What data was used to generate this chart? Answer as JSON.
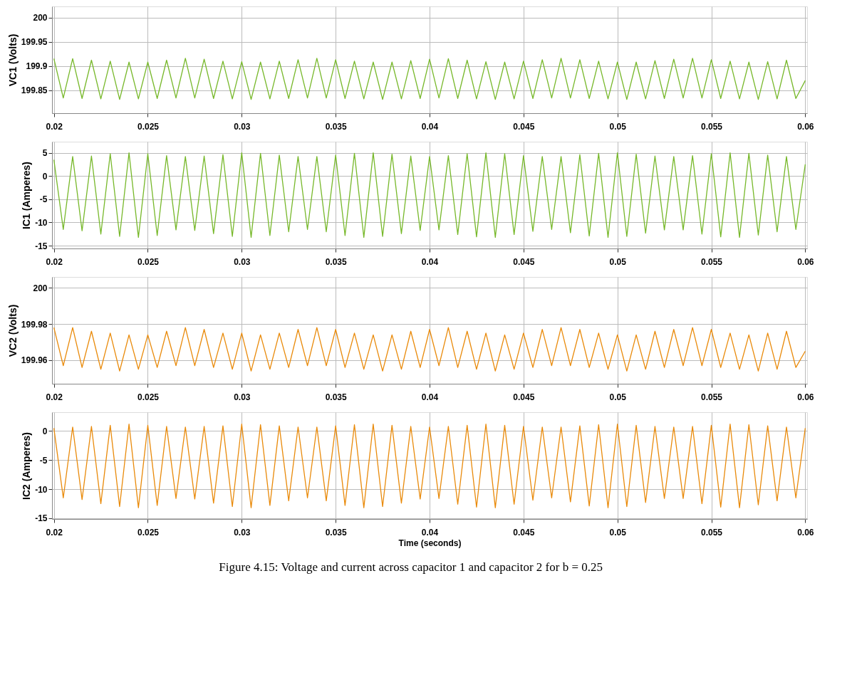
{
  "chart_data": [
    {
      "type": "line",
      "ylabel": "VC1 (Volts)",
      "grid": true,
      "xlim": [
        0.0199,
        0.0601
      ],
      "xticks": [
        0.02,
        0.025,
        0.03,
        0.035,
        0.04,
        0.045,
        0.05,
        0.055,
        0.06
      ],
      "ylim": [
        199.8025,
        200.023
      ],
      "yticks": [
        199.85,
        199.9,
        199.95,
        200
      ],
      "x": [
        0.02,
        0.0205,
        0.021,
        0.0215,
        0.022,
        0.0225,
        0.023,
        0.0235,
        0.024,
        0.0245,
        0.025,
        0.0255,
        0.026,
        0.0265,
        0.027,
        0.0275,
        0.028,
        0.0285,
        0.029,
        0.0295,
        0.03,
        0.0305,
        0.031,
        0.0315,
        0.032,
        0.0325,
        0.033,
        0.0335,
        0.034,
        0.0345,
        0.035,
        0.0355,
        0.036,
        0.0365,
        0.037,
        0.0375,
        0.038,
        0.0385,
        0.039,
        0.0395,
        0.04,
        0.0405,
        0.041,
        0.0415,
        0.042,
        0.0425,
        0.043,
        0.0435,
        0.044,
        0.0445,
        0.045,
        0.0455,
        0.046,
        0.0465,
        0.047,
        0.0475,
        0.048,
        0.0485,
        0.049,
        0.0495,
        0.05,
        0.0505,
        0.051,
        0.0515,
        0.052,
        0.0525,
        0.053,
        0.0535,
        0.054,
        0.0545,
        0.055,
        0.0555,
        0.056,
        0.0565,
        0.057,
        0.0575,
        0.058,
        0.0585,
        0.059,
        0.0595,
        0.06
      ],
      "series": [
        {
          "color": "#77b82a",
          "values": [
            199.915,
            199.834,
            199.915,
            199.833,
            199.912,
            199.832,
            199.91,
            199.831,
            199.908,
            199.832,
            199.908,
            199.833,
            199.912,
            199.834,
            199.916,
            199.834,
            199.914,
            199.833,
            199.91,
            199.832,
            199.909,
            199.831,
            199.908,
            199.832,
            199.91,
            199.833,
            199.913,
            199.834,
            199.916,
            199.834,
            199.913,
            199.833,
            199.91,
            199.832,
            199.908,
            199.831,
            199.908,
            199.832,
            199.911,
            199.833,
            199.914,
            199.834,
            199.915,
            199.833,
            199.912,
            199.832,
            199.909,
            199.831,
            199.908,
            199.832,
            199.91,
            199.833,
            199.913,
            199.834,
            199.916,
            199.834,
            199.913,
            199.833,
            199.91,
            199.832,
            199.908,
            199.831,
            199.908,
            199.832,
            199.911,
            199.833,
            199.914,
            199.834,
            199.916,
            199.834,
            199.913,
            199.833,
            199.91,
            199.832,
            199.908,
            199.831,
            199.909,
            199.832,
            199.912,
            199.833,
            199.87
          ]
        }
      ]
    },
    {
      "type": "line",
      "ylabel": "IC1 (Amperes)",
      "grid": true,
      "xlim": [
        0.0199,
        0.0601
      ],
      "xticks": [
        0.02,
        0.025,
        0.03,
        0.035,
        0.04,
        0.045,
        0.05,
        0.055,
        0.06
      ],
      "ylim": [
        -15.6,
        7.4
      ],
      "yticks": [
        -15,
        -10,
        -5,
        0,
        5
      ],
      "x": [
        0.02,
        0.0205,
        0.021,
        0.0215,
        0.022,
        0.0225,
        0.023,
        0.0235,
        0.024,
        0.0245,
        0.025,
        0.0255,
        0.026,
        0.0265,
        0.027,
        0.0275,
        0.028,
        0.0285,
        0.029,
        0.0295,
        0.03,
        0.0305,
        0.031,
        0.0315,
        0.032,
        0.0325,
        0.033,
        0.0335,
        0.034,
        0.0345,
        0.035,
        0.0355,
        0.036,
        0.0365,
        0.037,
        0.0375,
        0.038,
        0.0385,
        0.039,
        0.0395,
        0.04,
        0.0405,
        0.041,
        0.0415,
        0.042,
        0.0425,
        0.043,
        0.0435,
        0.044,
        0.0445,
        0.045,
        0.0455,
        0.046,
        0.0465,
        0.047,
        0.0475,
        0.048,
        0.0485,
        0.049,
        0.0495,
        0.05,
        0.0505,
        0.051,
        0.0515,
        0.052,
        0.0525,
        0.053,
        0.0535,
        0.054,
        0.0545,
        0.055,
        0.0555,
        0.056,
        0.0565,
        0.057,
        0.0575,
        0.058,
        0.0585,
        0.059,
        0.0595,
        0.06
      ],
      "series": [
        {
          "color": "#77b82a",
          "values": [
            3.5,
            -11.5,
            4.2,
            -11.8,
            4.3,
            -12.5,
            4.8,
            -13,
            5,
            -13.2,
            4.8,
            -12.8,
            4.4,
            -11.6,
            4.2,
            -11.7,
            4.3,
            -12.4,
            4.6,
            -13,
            5,
            -13.2,
            4.9,
            -12.8,
            4.5,
            -12,
            4.2,
            -11.5,
            4.2,
            -12,
            4.5,
            -12.8,
            4.9,
            -13.2,
            5,
            -13,
            4.7,
            -12.4,
            4.3,
            -11.7,
            4.2,
            -11.6,
            4.4,
            -12.6,
            4.8,
            -13.1,
            5,
            -13.2,
            4.8,
            -12.6,
            4.4,
            -11.9,
            4.2,
            -11.5,
            4.2,
            -12.2,
            4.6,
            -12.9,
            4.9,
            -13.2,
            5,
            -13,
            4.7,
            -12.3,
            4.3,
            -11.6,
            4.2,
            -11.6,
            4.4,
            -12.5,
            4.8,
            -13.1,
            5,
            -13.2,
            4.9,
            -12.7,
            4.5,
            -12,
            4.2,
            -11.5,
            2.5
          ]
        }
      ]
    },
    {
      "type": "line",
      "ylabel": "VC2 (Volts)",
      "grid": true,
      "xlim": [
        0.0199,
        0.0601
      ],
      "xticks": [
        0.02,
        0.025,
        0.03,
        0.035,
        0.04,
        0.045,
        0.05,
        0.055,
        0.06
      ],
      "ylim": [
        199.947,
        200.006
      ],
      "yticks": [
        199.96,
        199.98,
        200
      ],
      "x": [
        0.02,
        0.0205,
        0.021,
        0.0215,
        0.022,
        0.0225,
        0.023,
        0.0235,
        0.024,
        0.0245,
        0.025,
        0.0255,
        0.026,
        0.0265,
        0.027,
        0.0275,
        0.028,
        0.0285,
        0.029,
        0.0295,
        0.03,
        0.0305,
        0.031,
        0.0315,
        0.032,
        0.0325,
        0.033,
        0.0335,
        0.034,
        0.0345,
        0.035,
        0.0355,
        0.036,
        0.0365,
        0.037,
        0.0375,
        0.038,
        0.0385,
        0.039,
        0.0395,
        0.04,
        0.0405,
        0.041,
        0.0415,
        0.042,
        0.0425,
        0.043,
        0.0435,
        0.044,
        0.0445,
        0.045,
        0.0455,
        0.046,
        0.0465,
        0.047,
        0.0475,
        0.048,
        0.0485,
        0.049,
        0.0495,
        0.05,
        0.0505,
        0.051,
        0.0515,
        0.052,
        0.0525,
        0.053,
        0.0535,
        0.054,
        0.0545,
        0.055,
        0.0555,
        0.056,
        0.0565,
        0.057,
        0.0575,
        0.058,
        0.0585,
        0.059,
        0.0595,
        0.06
      ],
      "series": [
        {
          "color": "#e98a0a",
          "values": [
            199.978,
            199.957,
            199.978,
            199.956,
            199.976,
            199.955,
            199.975,
            199.954,
            199.974,
            199.955,
            199.974,
            199.956,
            199.976,
            199.957,
            199.978,
            199.957,
            199.977,
            199.956,
            199.975,
            199.955,
            199.975,
            199.954,
            199.974,
            199.955,
            199.975,
            199.956,
            199.977,
            199.957,
            199.978,
            199.957,
            199.977,
            199.956,
            199.975,
            199.955,
            199.974,
            199.954,
            199.974,
            199.955,
            199.976,
            199.956,
            199.977,
            199.957,
            199.978,
            199.956,
            199.976,
            199.955,
            199.975,
            199.954,
            199.974,
            199.955,
            199.975,
            199.956,
            199.977,
            199.957,
            199.978,
            199.957,
            199.977,
            199.956,
            199.975,
            199.955,
            199.974,
            199.954,
            199.974,
            199.955,
            199.976,
            199.956,
            199.977,
            199.957,
            199.978,
            199.957,
            199.977,
            199.956,
            199.975,
            199.955,
            199.974,
            199.954,
            199.975,
            199.955,
            199.976,
            199.956,
            199.965
          ]
        }
      ]
    },
    {
      "type": "line",
      "ylabel": "IC2 (Amperes)",
      "xlabel": "Time (seconds)",
      "grid": true,
      "xlim": [
        0.0199,
        0.0601
      ],
      "xticks": [
        0.02,
        0.025,
        0.03,
        0.035,
        0.04,
        0.045,
        0.05,
        0.055,
        0.06
      ],
      "ylim": [
        -15.15,
        3.25
      ],
      "yticks": [
        -15,
        -10,
        -5,
        0
      ],
      "annotations": [
        "Figure 4.15: Voltage and current across capacitor 1 and capacitor 2 for b = 0.25"
      ],
      "x": [
        0.02,
        0.0205,
        0.021,
        0.0215,
        0.022,
        0.0225,
        0.023,
        0.0235,
        0.024,
        0.0245,
        0.025,
        0.0255,
        0.026,
        0.0265,
        0.027,
        0.0275,
        0.028,
        0.0285,
        0.029,
        0.0295,
        0.03,
        0.0305,
        0.031,
        0.0315,
        0.032,
        0.0325,
        0.033,
        0.0335,
        0.034,
        0.0345,
        0.035,
        0.0355,
        0.036,
        0.0365,
        0.037,
        0.0375,
        0.038,
        0.0385,
        0.039,
        0.0395,
        0.04,
        0.0405,
        0.041,
        0.0415,
        0.042,
        0.0425,
        0.043,
        0.0435,
        0.044,
        0.0445,
        0.045,
        0.0455,
        0.046,
        0.0465,
        0.047,
        0.0475,
        0.048,
        0.0485,
        0.049,
        0.0495,
        0.05,
        0.0505,
        0.051,
        0.0515,
        0.052,
        0.0525,
        0.053,
        0.0535,
        0.054,
        0.0545,
        0.055,
        0.0555,
        0.056,
        0.0565,
        0.057,
        0.0575,
        0.058,
        0.0585,
        0.059,
        0.0595,
        0.06
      ],
      "series": [
        {
          "color": "#e98a0a",
          "values": [
            0.5,
            -11.5,
            0.7,
            -11.8,
            0.8,
            -12.5,
            1,
            -13,
            1.2,
            -13.2,
            1,
            -12.8,
            0.8,
            -11.6,
            0.7,
            -11.7,
            0.8,
            -12.4,
            0.9,
            -13,
            1.2,
            -13.2,
            1.1,
            -12.8,
            0.9,
            -12,
            0.7,
            -11.5,
            0.7,
            -12,
            0.9,
            -12.8,
            1.1,
            -13.2,
            1.2,
            -13,
            1,
            -12.4,
            0.8,
            -11.7,
            0.7,
            -11.6,
            0.8,
            -12.6,
            1,
            -13.1,
            1.2,
            -13.2,
            1,
            -12.6,
            0.8,
            -11.9,
            0.7,
            -11.5,
            0.7,
            -12.2,
            0.9,
            -12.9,
            1.1,
            -13.2,
            1.2,
            -13,
            1,
            -12.3,
            0.8,
            -11.6,
            0.7,
            -11.6,
            0.8,
            -12.5,
            1,
            -13.1,
            1.2,
            -13.2,
            1.1,
            -12.7,
            0.9,
            -12,
            0.7,
            -11.5,
            0.5
          ]
        }
      ]
    }
  ]
}
